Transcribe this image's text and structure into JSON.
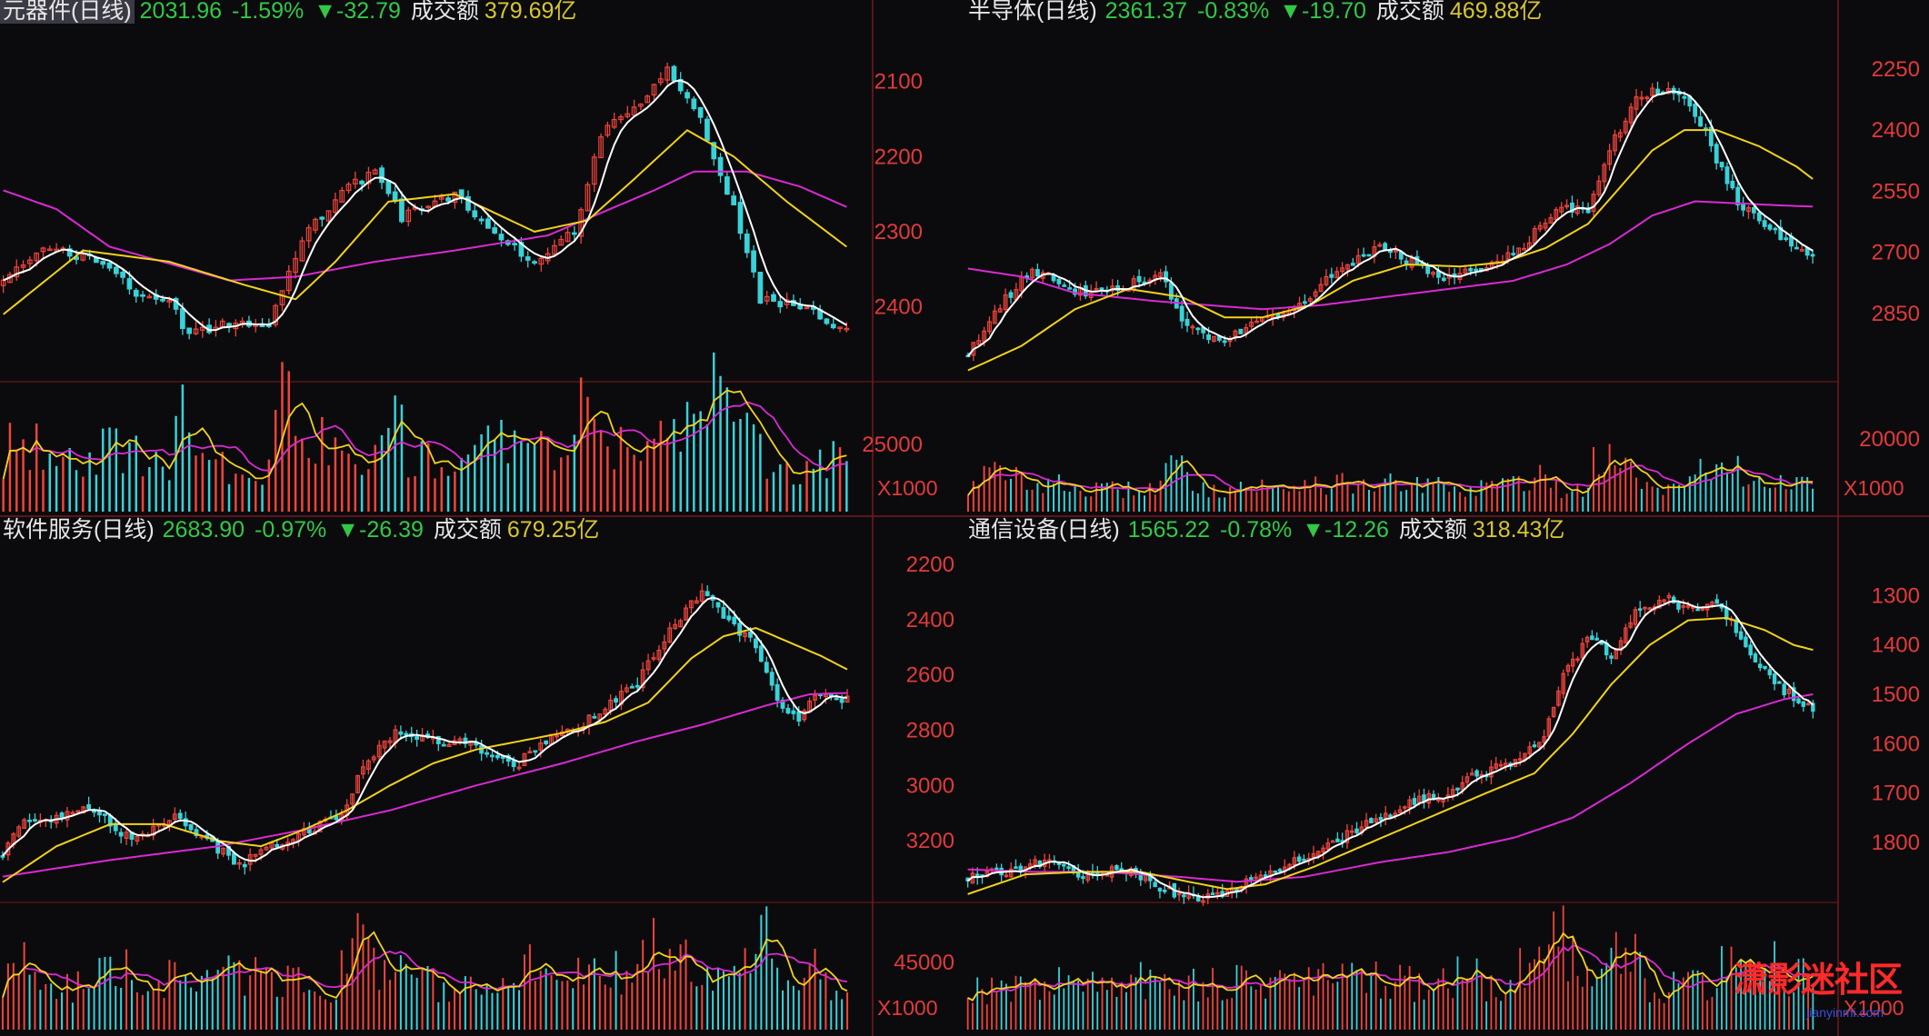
{
  "watermark": {
    "text": "潇影迷社区",
    "url": "jianyinmi.com"
  },
  "colors": {
    "up": "#f0443a",
    "down": "#38d2d8",
    "ma5": "#ffffff",
    "ma10": "#f2d21b",
    "ma20": "#d92ad2",
    "grid": "#7a1818",
    "axis": "#e23a3a"
  },
  "panels": [
    {
      "id": "components",
      "name": "元器件(日线)",
      "price": "2031.96",
      "pct": "-1.59%",
      "change": "▼-32.79",
      "turnover_label": "成交额",
      "turnover": "379.69亿",
      "highlight_name": true,
      "price_ticks": [
        "2400",
        "2300",
        "2200",
        "2100"
      ],
      "volume_tick": "25000",
      "unit": "X1000",
      "chart_data": {
        "type": "candlestick",
        "price_range": [
          2010,
          2460
        ],
        "ticks": [
          2100,
          2200,
          2300,
          2400
        ],
        "seed": 7,
        "anchors": [
          [
            0,
            2130
          ],
          [
            6,
            2180
          ],
          [
            14,
            2160
          ],
          [
            20,
            2120
          ],
          [
            25,
            2110
          ],
          [
            28,
            2060
          ],
          [
            33,
            2080
          ],
          [
            40,
            2080
          ],
          [
            45,
            2190
          ],
          [
            52,
            2260
          ],
          [
            56,
            2280
          ],
          [
            60,
            2220
          ],
          [
            68,
            2250
          ],
          [
            75,
            2190
          ],
          [
            80,
            2160
          ],
          [
            86,
            2200
          ],
          [
            90,
            2330
          ],
          [
            96,
            2370
          ],
          [
            100,
            2420
          ],
          [
            105,
            2350
          ],
          [
            110,
            2230
          ],
          [
            112,
            2170
          ],
          [
            114,
            2110
          ],
          [
            120,
            2100
          ],
          [
            127,
            2066
          ]
        ],
        "ma10": [
          [
            0,
            2090
          ],
          [
            12,
            2175
          ],
          [
            25,
            2160
          ],
          [
            36,
            2130
          ],
          [
            44,
            2110
          ],
          [
            50,
            2160
          ],
          [
            58,
            2240
          ],
          [
            68,
            2250
          ],
          [
            80,
            2200
          ],
          [
            88,
            2215
          ],
          [
            95,
            2270
          ],
          [
            103,
            2335
          ],
          [
            110,
            2300
          ],
          [
            118,
            2240
          ],
          [
            127,
            2180
          ]
        ],
        "ma20": [
          [
            0,
            2255
          ],
          [
            8,
            2230
          ],
          [
            16,
            2180
          ],
          [
            24,
            2160
          ],
          [
            34,
            2135
          ],
          [
            44,
            2140
          ],
          [
            56,
            2160
          ],
          [
            68,
            2175
          ],
          [
            82,
            2195
          ],
          [
            90,
            2225
          ],
          [
            98,
            2255
          ],
          [
            104,
            2280
          ],
          [
            112,
            2280
          ],
          [
            120,
            2260
          ],
          [
            127,
            2233
          ]
        ],
        "volume_tick_value": 25000,
        "volume_max": 33000,
        "volume_level": 20000
      }
    },
    {
      "id": "semiconductor",
      "name": "半导体(日线)",
      "price": "2361.37",
      "pct": "-0.83%",
      "change": "▼-19.70",
      "turnover_label": "成交额",
      "turnover": "469.88亿",
      "highlight_name": false,
      "price_ticks": [
        "2850",
        "2700",
        "2550",
        "2400",
        "2250"
      ],
      "volume_tick": "20000",
      "unit": "X1000",
      "chart_data": {
        "type": "candlestick",
        "price_range": [
          2100,
          2930
        ],
        "ticks": [
          2250,
          2400,
          2550,
          2700,
          2850
        ],
        "seed": 11,
        "anchors": [
          [
            0,
            2150
          ],
          [
            6,
            2270
          ],
          [
            12,
            2360
          ],
          [
            20,
            2300
          ],
          [
            30,
            2320
          ],
          [
            36,
            2350
          ],
          [
            40,
            2240
          ],
          [
            44,
            2200
          ],
          [
            48,
            2190
          ],
          [
            55,
            2230
          ],
          [
            60,
            2250
          ],
          [
            66,
            2320
          ],
          [
            72,
            2370
          ],
          [
            77,
            2420
          ],
          [
            82,
            2380
          ],
          [
            88,
            2340
          ],
          [
            95,
            2350
          ],
          [
            100,
            2380
          ],
          [
            105,
            2430
          ],
          [
            110,
            2510
          ],
          [
            116,
            2500
          ],
          [
            120,
            2650
          ],
          [
            124,
            2760
          ],
          [
            128,
            2800
          ],
          [
            134,
            2780
          ],
          [
            137,
            2720
          ],
          [
            141,
            2600
          ],
          [
            144,
            2520
          ],
          [
            148,
            2480
          ],
          [
            154,
            2420
          ],
          [
            158,
            2384
          ]
        ],
        "ma10": [
          [
            0,
            2110
          ],
          [
            10,
            2170
          ],
          [
            20,
            2260
          ],
          [
            30,
            2310
          ],
          [
            40,
            2290
          ],
          [
            48,
            2240
          ],
          [
            55,
            2240
          ],
          [
            64,
            2270
          ],
          [
            72,
            2330
          ],
          [
            82,
            2370
          ],
          [
            92,
            2365
          ],
          [
            100,
            2375
          ],
          [
            108,
            2410
          ],
          [
            116,
            2470
          ],
          [
            122,
            2560
          ],
          [
            128,
            2650
          ],
          [
            134,
            2700
          ],
          [
            140,
            2700
          ],
          [
            148,
            2660
          ],
          [
            155,
            2610
          ],
          [
            158,
            2580
          ]
        ],
        "ma20": [
          [
            0,
            2360
          ],
          [
            10,
            2340
          ],
          [
            20,
            2300
          ],
          [
            35,
            2280
          ],
          [
            45,
            2270
          ],
          [
            55,
            2260
          ],
          [
            66,
            2270
          ],
          [
            78,
            2290
          ],
          [
            90,
            2310
          ],
          [
            102,
            2330
          ],
          [
            112,
            2370
          ],
          [
            120,
            2420
          ],
          [
            128,
            2490
          ],
          [
            136,
            2525
          ],
          [
            144,
            2520
          ],
          [
            152,
            2515
          ],
          [
            158,
            2512
          ]
        ],
        "volume_tick_value": 20000,
        "volume_max": 30000,
        "volume_level": 9000
      }
    },
    {
      "id": "software",
      "name": "软件服务(日线)",
      "price": "2683.90",
      "pct": "-0.97%",
      "change": "▼-26.39",
      "turnover_label": "成交额",
      "turnover": "679.25亿",
      "highlight_name": false,
      "price_ticks": [
        "3200",
        "3000",
        "2800",
        "2600",
        "2400",
        "2200"
      ],
      "volume_tick": "45000",
      "unit": "X1000",
      "chart_data": {
        "type": "candlestick",
        "price_range": [
          1980,
          3230
        ],
        "ticks": [
          2200,
          2400,
          2600,
          2800,
          3000,
          3200
        ],
        "seed": 23,
        "anchors": [
          [
            0,
            2150
          ],
          [
            4,
            2270
          ],
          [
            10,
            2290
          ],
          [
            16,
            2320
          ],
          [
            24,
            2200
          ],
          [
            32,
            2280
          ],
          [
            40,
            2170
          ],
          [
            44,
            2110
          ],
          [
            50,
            2180
          ],
          [
            56,
            2240
          ],
          [
            62,
            2270
          ],
          [
            68,
            2500
          ],
          [
            74,
            2600
          ],
          [
            80,
            2560
          ],
          [
            86,
            2560
          ],
          [
            90,
            2510
          ],
          [
            96,
            2480
          ],
          [
            100,
            2560
          ],
          [
            106,
            2600
          ],
          [
            112,
            2680
          ],
          [
            118,
            2770
          ],
          [
            124,
            2970
          ],
          [
            130,
            3100
          ],
          [
            136,
            2980
          ],
          [
            140,
            2900
          ],
          [
            144,
            2700
          ],
          [
            148,
            2650
          ],
          [
            152,
            2730
          ],
          [
            157,
            2716
          ]
        ],
        "ma10": [
          [
            0,
            2050
          ],
          [
            10,
            2180
          ],
          [
            20,
            2260
          ],
          [
            30,
            2260
          ],
          [
            40,
            2200
          ],
          [
            48,
            2180
          ],
          [
            56,
            2240
          ],
          [
            64,
            2310
          ],
          [
            72,
            2400
          ],
          [
            80,
            2480
          ],
          [
            88,
            2530
          ],
          [
            96,
            2560
          ],
          [
            104,
            2590
          ],
          [
            112,
            2630
          ],
          [
            120,
            2700
          ],
          [
            128,
            2860
          ],
          [
            134,
            2940
          ],
          [
            140,
            2970
          ],
          [
            146,
            2920
          ],
          [
            152,
            2870
          ],
          [
            157,
            2820
          ]
        ],
        "ma20": [
          [
            0,
            2070
          ],
          [
            20,
            2130
          ],
          [
            40,
            2180
          ],
          [
            56,
            2240
          ],
          [
            72,
            2310
          ],
          [
            88,
            2400
          ],
          [
            104,
            2480
          ],
          [
            118,
            2560
          ],
          [
            130,
            2620
          ],
          [
            142,
            2690
          ],
          [
            150,
            2730
          ],
          [
            157,
            2735
          ]
        ],
        "volume_tick_value": 45000,
        "volume_max": 68000,
        "volume_level": 40000
      }
    },
    {
      "id": "telecom",
      "name": "通信设备(日线)",
      "price": "1565.22",
      "pct": "-0.78%",
      "change": "▼-12.26",
      "turnover_label": "成交额",
      "turnover": "318.43亿",
      "highlight_name": false,
      "price_ticks": [
        "1800",
        "1700",
        "1600",
        "1500",
        "1400",
        "1300"
      ],
      "volume_tick": "",
      "unit": "X1000",
      "chart_data": {
        "type": "candlestick",
        "price_range": [
          1180,
          1880
        ],
        "ticks": [
          1300,
          1400,
          1500,
          1600,
          1700,
          1800
        ],
        "seed": 31,
        "anchors": [
          [
            0,
            1230
          ],
          [
            8,
            1240
          ],
          [
            16,
            1260
          ],
          [
            24,
            1230
          ],
          [
            32,
            1250
          ],
          [
            40,
            1210
          ],
          [
            48,
            1180
          ],
          [
            54,
            1200
          ],
          [
            60,
            1230
          ],
          [
            68,
            1260
          ],
          [
            76,
            1300
          ],
          [
            84,
            1340
          ],
          [
            92,
            1380
          ],
          [
            100,
            1400
          ],
          [
            106,
            1440
          ],
          [
            114,
            1460
          ],
          [
            120,
            1520
          ],
          [
            124,
            1640
          ],
          [
            130,
            1720
          ],
          [
            134,
            1680
          ],
          [
            140,
            1780
          ],
          [
            146,
            1790
          ],
          [
            150,
            1770
          ],
          [
            156,
            1790
          ],
          [
            162,
            1700
          ],
          [
            168,
            1620
          ],
          [
            173,
            1590
          ],
          [
            176,
            1570
          ]
        ],
        "ma10": [
          [
            0,
            1195
          ],
          [
            12,
            1235
          ],
          [
            24,
            1240
          ],
          [
            36,
            1240
          ],
          [
            46,
            1220
          ],
          [
            54,
            1205
          ],
          [
            62,
            1215
          ],
          [
            72,
            1250
          ],
          [
            84,
            1300
          ],
          [
            96,
            1350
          ],
          [
            108,
            1400
          ],
          [
            118,
            1440
          ],
          [
            126,
            1520
          ],
          [
            134,
            1620
          ],
          [
            142,
            1700
          ],
          [
            150,
            1750
          ],
          [
            158,
            1755
          ],
          [
            166,
            1730
          ],
          [
            172,
            1700
          ],
          [
            176,
            1690
          ]
        ],
        "ma20": [
          [
            0,
            1245
          ],
          [
            14,
            1240
          ],
          [
            28,
            1240
          ],
          [
            44,
            1230
          ],
          [
            56,
            1220
          ],
          [
            70,
            1230
          ],
          [
            86,
            1260
          ],
          [
            100,
            1280
          ],
          [
            114,
            1310
          ],
          [
            126,
            1350
          ],
          [
            138,
            1420
          ],
          [
            150,
            1500
          ],
          [
            160,
            1560
          ],
          [
            170,
            1590
          ],
          [
            176,
            1600
          ]
        ],
        "volume_tick_value": 45000,
        "volume_max": 60000,
        "volume_level": 35000
      }
    }
  ]
}
